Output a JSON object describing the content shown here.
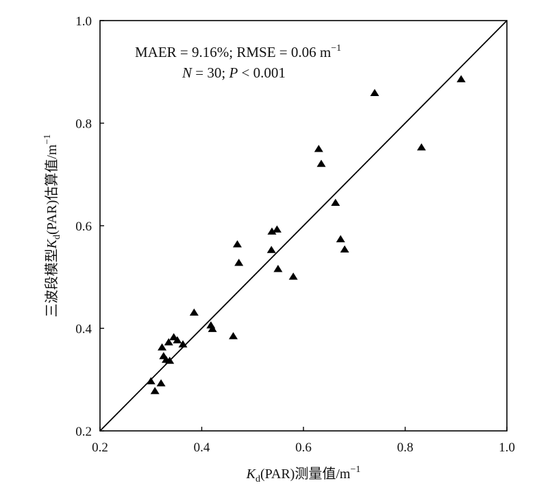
{
  "chart_data": {
    "type": "scatter",
    "title": "",
    "xlabel": {
      "symbol": "K",
      "subscript": "d",
      "text": "(PAR)测量值/m",
      "sup": "−1"
    },
    "ylabel": {
      "prefix": "三波段模型",
      "symbol": "K",
      "subscript": "d",
      "text": "(PAR)估算值/m",
      "sup": "−1"
    },
    "xlim": [
      0.2,
      1.0
    ],
    "ylim": [
      0.2,
      1.0
    ],
    "x_ticks": [
      0.2,
      0.4,
      0.6,
      0.8,
      1.0
    ],
    "y_ticks": [
      0.2,
      0.4,
      0.6,
      0.8,
      1.0
    ],
    "x_tick_labels": [
      "0.2",
      "0.4",
      "0.6",
      "0.8",
      "1.0"
    ],
    "y_tick_labels": [
      "0.2",
      "0.4",
      "0.6",
      "0.8",
      "1.0"
    ],
    "grid": false,
    "marker": "triangle",
    "marker_color": "#000000",
    "reference_line": {
      "type": "1:1",
      "from": [
        0.2,
        0.2
      ],
      "to": [
        1.0,
        1.0
      ]
    },
    "annotation": {
      "line1": "MAER = 9.16%; RMSE = 0.06 m",
      "line1_sup": "−1",
      "line2_n": "N",
      "line2_mid": " = 30; ",
      "line2_p": "P",
      "line2_tail": " < 0.001"
    },
    "points": [
      {
        "x": 0.74,
        "y": 0.858
      },
      {
        "x": 0.91,
        "y": 0.885
      },
      {
        "x": 0.832,
        "y": 0.752
      },
      {
        "x": 0.63,
        "y": 0.749
      },
      {
        "x": 0.635,
        "y": 0.72
      },
      {
        "x": 0.663,
        "y": 0.644
      },
      {
        "x": 0.548,
        "y": 0.592
      },
      {
        "x": 0.538,
        "y": 0.588
      },
      {
        "x": 0.47,
        "y": 0.563
      },
      {
        "x": 0.537,
        "y": 0.552
      },
      {
        "x": 0.673,
        "y": 0.573
      },
      {
        "x": 0.681,
        "y": 0.553
      },
      {
        "x": 0.473,
        "y": 0.527
      },
      {
        "x": 0.55,
        "y": 0.515
      },
      {
        "x": 0.58,
        "y": 0.5
      },
      {
        "x": 0.385,
        "y": 0.43
      },
      {
        "x": 0.418,
        "y": 0.405
      },
      {
        "x": 0.421,
        "y": 0.398
      },
      {
        "x": 0.462,
        "y": 0.384
      },
      {
        "x": 0.345,
        "y": 0.382
      },
      {
        "x": 0.352,
        "y": 0.376
      },
      {
        "x": 0.335,
        "y": 0.372
      },
      {
        "x": 0.363,
        "y": 0.368
      },
      {
        "x": 0.322,
        "y": 0.362
      },
      {
        "x": 0.325,
        "y": 0.345
      },
      {
        "x": 0.33,
        "y": 0.338
      },
      {
        "x": 0.337,
        "y": 0.336
      },
      {
        "x": 0.3,
        "y": 0.296
      },
      {
        "x": 0.32,
        "y": 0.292
      },
      {
        "x": 0.308,
        "y": 0.277
      }
    ]
  }
}
